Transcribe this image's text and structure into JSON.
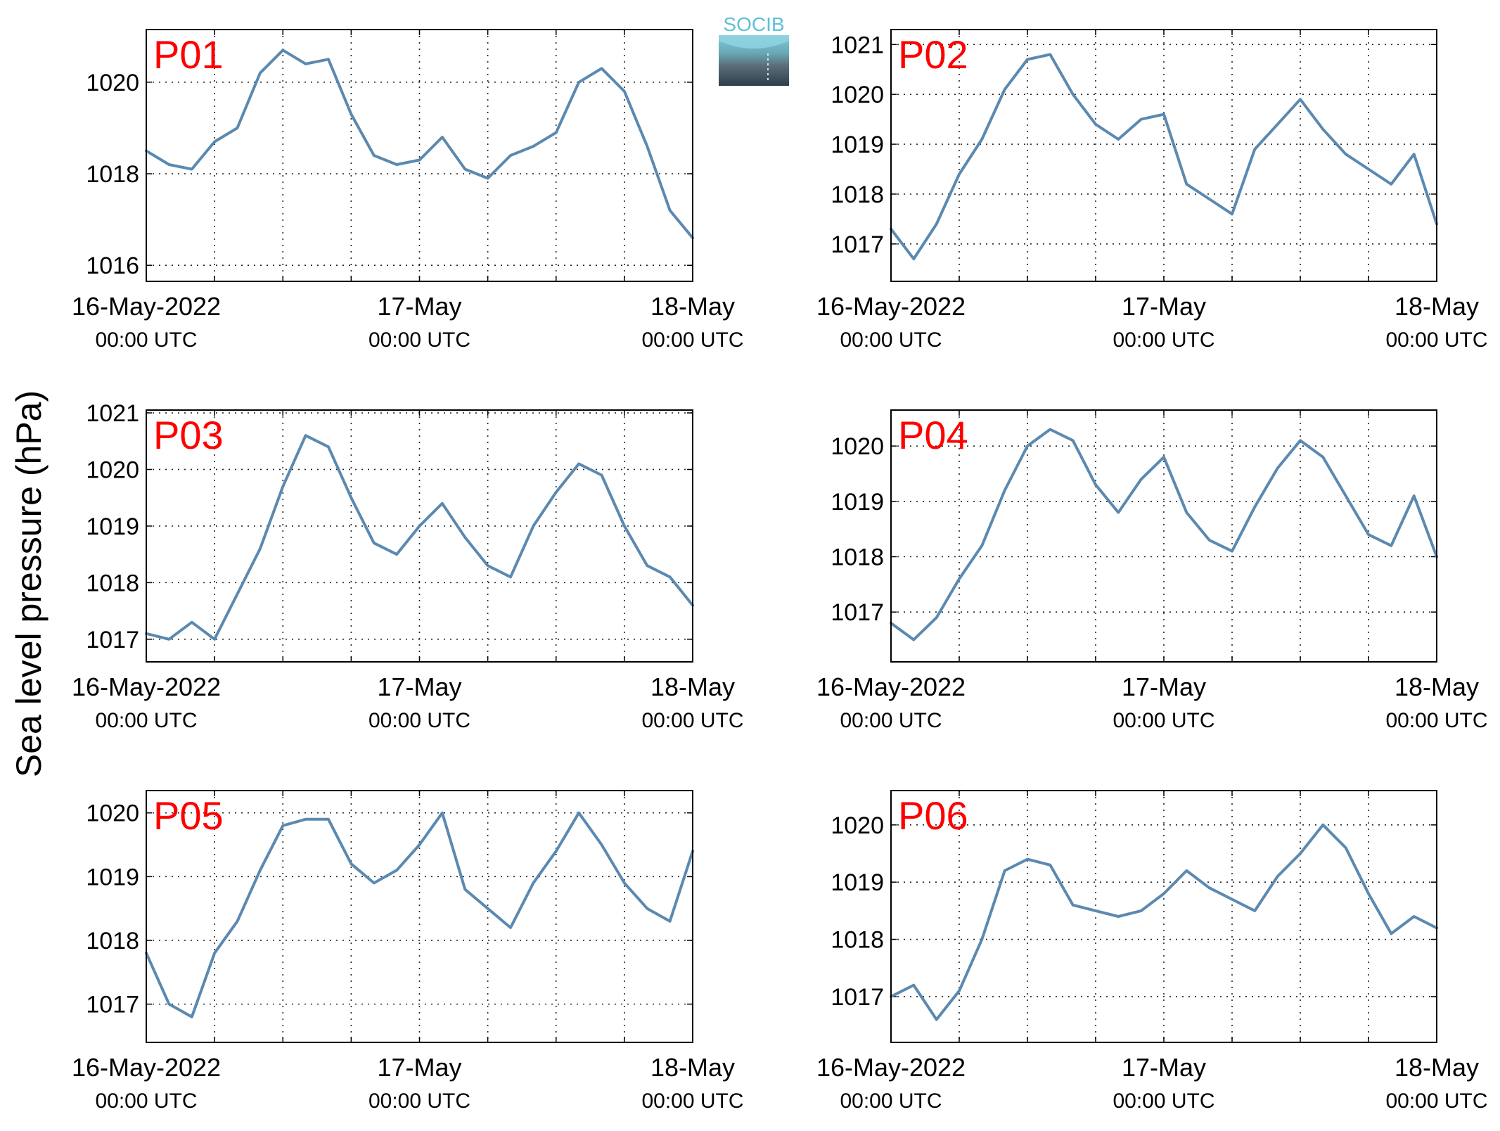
{
  "logo": {
    "text": "SOCIB"
  },
  "figure": {
    "ylabel": "Sea level pressure (hPa)"
  },
  "chart_data": [
    {
      "type": "line",
      "title": "P01",
      "x_ticks": [
        {
          "date": "2022-05-16T00:00",
          "label_line1": "16-May-2022",
          "label_line2": "00:00 UTC"
        },
        {
          "date": "2022-05-17T00:00",
          "label_line1": "17-May",
          "label_line2": "00:00 UTC"
        },
        {
          "date": "2022-05-18T00:00",
          "label_line1": "18-May",
          "label_line2": "00:00 UTC"
        }
      ],
      "xlim": [
        "2022-05-16T00:00",
        "2022-05-18T00:00"
      ],
      "ylim": [
        1015.65,
        1021.15
      ],
      "y_ticks": [
        1016,
        1018,
        1020
      ],
      "grid": true,
      "series": [
        {
          "color": "#5b89b0",
          "x": [
            "2022-05-16T00:00",
            "2022-05-16T02:00",
            "2022-05-16T04:00",
            "2022-05-16T06:00",
            "2022-05-16T08:00",
            "2022-05-16T10:00",
            "2022-05-16T12:00",
            "2022-05-16T14:00",
            "2022-05-16T16:00",
            "2022-05-16T18:00",
            "2022-05-16T20:00",
            "2022-05-16T22:00",
            "2022-05-17T00:00",
            "2022-05-17T02:00",
            "2022-05-17T04:00",
            "2022-05-17T06:00",
            "2022-05-17T08:00",
            "2022-05-17T10:00",
            "2022-05-17T12:00",
            "2022-05-17T14:00",
            "2022-05-17T16:00",
            "2022-05-17T18:00",
            "2022-05-17T20:00",
            "2022-05-17T22:00",
            "2022-05-18T00:00"
          ],
          "y": [
            1018.5,
            1018.2,
            1018.1,
            1018.7,
            1019.0,
            1020.2,
            1020.7,
            1020.4,
            1020.5,
            1019.3,
            1018.4,
            1018.2,
            1018.3,
            1018.8,
            1018.1,
            1017.9,
            1018.4,
            1018.6,
            1018.9,
            1020.0,
            1020.3,
            1019.8,
            1018.6,
            1017.2,
            1016.6
          ]
        }
      ]
    },
    {
      "type": "line",
      "title": "P02",
      "x_ticks": [
        {
          "date": "2022-05-16T00:00",
          "label_line1": "16-May-2022",
          "label_line2": "00:00 UTC"
        },
        {
          "date": "2022-05-17T00:00",
          "label_line1": "17-May",
          "label_line2": "00:00 UTC"
        },
        {
          "date": "2022-05-18T00:00",
          "label_line1": "18-May",
          "label_line2": "00:00 UTC"
        }
      ],
      "xlim": [
        "2022-05-16T00:00",
        "2022-05-18T00:00"
      ],
      "ylim": [
        1016.25,
        1021.3
      ],
      "y_ticks": [
        1017,
        1018,
        1019,
        1020,
        1021
      ],
      "grid": true,
      "series": [
        {
          "color": "#5b89b0",
          "x": [
            "2022-05-16T00:00",
            "2022-05-16T02:00",
            "2022-05-16T04:00",
            "2022-05-16T06:00",
            "2022-05-16T08:00",
            "2022-05-16T10:00",
            "2022-05-16T12:00",
            "2022-05-16T14:00",
            "2022-05-16T16:00",
            "2022-05-16T18:00",
            "2022-05-16T20:00",
            "2022-05-16T22:00",
            "2022-05-17T00:00",
            "2022-05-17T02:00",
            "2022-05-17T04:00",
            "2022-05-17T06:00",
            "2022-05-17T08:00",
            "2022-05-17T10:00",
            "2022-05-17T12:00",
            "2022-05-17T14:00",
            "2022-05-17T16:00",
            "2022-05-17T18:00",
            "2022-05-17T20:00",
            "2022-05-17T22:00",
            "2022-05-18T00:00"
          ],
          "y": [
            1017.3,
            1016.7,
            1017.4,
            1018.4,
            1019.1,
            1020.1,
            1020.7,
            1020.8,
            1020.0,
            1019.4,
            1019.1,
            1019.5,
            1019.6,
            1018.2,
            1017.9,
            1017.6,
            1018.9,
            1019.4,
            1019.9,
            1019.3,
            1018.8,
            1018.5,
            1018.2,
            1018.8,
            1017.4
          ]
        }
      ]
    },
    {
      "type": "line",
      "title": "P03",
      "x_ticks": [
        {
          "date": "2022-05-16T00:00",
          "label_line1": "16-May-2022",
          "label_line2": "00:00 UTC"
        },
        {
          "date": "2022-05-17T00:00",
          "label_line1": "17-May",
          "label_line2": "00:00 UTC"
        },
        {
          "date": "2022-05-18T00:00",
          "label_line1": "18-May",
          "label_line2": "00:00 UTC"
        }
      ],
      "xlim": [
        "2022-05-16T00:00",
        "2022-05-18T00:00"
      ],
      "ylim": [
        1016.6,
        1021.05
      ],
      "y_ticks": [
        1017,
        1018,
        1019,
        1020,
        1021
      ],
      "grid": true,
      "series": [
        {
          "color": "#5b89b0",
          "x": [
            "2022-05-16T00:00",
            "2022-05-16T02:00",
            "2022-05-16T04:00",
            "2022-05-16T06:00",
            "2022-05-16T08:00",
            "2022-05-16T10:00",
            "2022-05-16T12:00",
            "2022-05-16T14:00",
            "2022-05-16T16:00",
            "2022-05-16T18:00",
            "2022-05-16T20:00",
            "2022-05-16T22:00",
            "2022-05-17T00:00",
            "2022-05-17T02:00",
            "2022-05-17T04:00",
            "2022-05-17T06:00",
            "2022-05-17T08:00",
            "2022-05-17T10:00",
            "2022-05-17T12:00",
            "2022-05-17T14:00",
            "2022-05-17T16:00",
            "2022-05-17T18:00",
            "2022-05-17T20:00",
            "2022-05-17T22:00",
            "2022-05-18T00:00"
          ],
          "y": [
            1017.1,
            1017.0,
            1017.3,
            1017.0,
            1017.8,
            1018.6,
            1019.7,
            1020.6,
            1020.4,
            1019.5,
            1018.7,
            1018.5,
            1019.0,
            1019.4,
            1018.8,
            1018.3,
            1018.1,
            1019.0,
            1019.6,
            1020.1,
            1019.9,
            1019.0,
            1018.3,
            1018.1,
            1017.6
          ]
        }
      ]
    },
    {
      "type": "line",
      "title": "P04",
      "x_ticks": [
        {
          "date": "2022-05-16T00:00",
          "label_line1": "16-May-2022",
          "label_line2": "00:00 UTC"
        },
        {
          "date": "2022-05-17T00:00",
          "label_line1": "17-May",
          "label_line2": "00:00 UTC"
        },
        {
          "date": "2022-05-18T00:00",
          "label_line1": "18-May",
          "label_line2": "00:00 UTC"
        }
      ],
      "xlim": [
        "2022-05-16T00:00",
        "2022-05-18T00:00"
      ],
      "ylim": [
        1016.1,
        1020.65
      ],
      "y_ticks": [
        1017,
        1018,
        1019,
        1020
      ],
      "grid": true,
      "series": [
        {
          "color": "#5b89b0",
          "x": [
            "2022-05-16T00:00",
            "2022-05-16T02:00",
            "2022-05-16T04:00",
            "2022-05-16T06:00",
            "2022-05-16T08:00",
            "2022-05-16T10:00",
            "2022-05-16T12:00",
            "2022-05-16T14:00",
            "2022-05-16T16:00",
            "2022-05-16T18:00",
            "2022-05-16T20:00",
            "2022-05-16T22:00",
            "2022-05-17T00:00",
            "2022-05-17T02:00",
            "2022-05-17T04:00",
            "2022-05-17T06:00",
            "2022-05-17T08:00",
            "2022-05-17T10:00",
            "2022-05-17T12:00",
            "2022-05-17T14:00",
            "2022-05-17T16:00",
            "2022-05-17T18:00",
            "2022-05-17T20:00",
            "2022-05-17T22:00",
            "2022-05-18T00:00"
          ],
          "y": [
            1016.8,
            1016.5,
            1016.9,
            1017.6,
            1018.2,
            1019.2,
            1020.0,
            1020.3,
            1020.1,
            1019.3,
            1018.8,
            1019.4,
            1019.8,
            1018.8,
            1018.3,
            1018.1,
            1018.9,
            1019.6,
            1020.1,
            1019.8,
            1019.1,
            1018.4,
            1018.2,
            1019.1,
            1018.0
          ]
        }
      ]
    },
    {
      "type": "line",
      "title": "P05",
      "x_ticks": [
        {
          "date": "2022-05-16T00:00",
          "label_line1": "16-May-2022",
          "label_line2": "00:00 UTC"
        },
        {
          "date": "2022-05-17T00:00",
          "label_line1": "17-May",
          "label_line2": "00:00 UTC"
        },
        {
          "date": "2022-05-18T00:00",
          "label_line1": "18-May",
          "label_line2": "00:00 UTC"
        }
      ],
      "xlim": [
        "2022-05-16T00:00",
        "2022-05-18T00:00"
      ],
      "ylim": [
        1016.4,
        1020.35
      ],
      "y_ticks": [
        1017,
        1018,
        1019,
        1020
      ],
      "grid": true,
      "series": [
        {
          "color": "#5b89b0",
          "x": [
            "2022-05-16T00:00",
            "2022-05-16T02:00",
            "2022-05-16T04:00",
            "2022-05-16T06:00",
            "2022-05-16T08:00",
            "2022-05-16T10:00",
            "2022-05-16T12:00",
            "2022-05-16T14:00",
            "2022-05-16T16:00",
            "2022-05-16T18:00",
            "2022-05-16T20:00",
            "2022-05-16T22:00",
            "2022-05-17T00:00",
            "2022-05-17T02:00",
            "2022-05-17T04:00",
            "2022-05-17T06:00",
            "2022-05-17T08:00",
            "2022-05-17T10:00",
            "2022-05-17T12:00",
            "2022-05-17T14:00",
            "2022-05-17T16:00",
            "2022-05-17T18:00",
            "2022-05-17T20:00",
            "2022-05-17T22:00",
            "2022-05-18T00:00"
          ],
          "y": [
            1017.8,
            1017.0,
            1016.8,
            1017.8,
            1018.3,
            1019.1,
            1019.8,
            1019.9,
            1019.9,
            1019.2,
            1018.9,
            1019.1,
            1019.5,
            1020.0,
            1018.8,
            1018.5,
            1018.2,
            1018.9,
            1019.4,
            1020.0,
            1019.5,
            1018.9,
            1018.5,
            1018.3,
            1019.4
          ]
        }
      ]
    },
    {
      "type": "line",
      "title": "P06",
      "x_ticks": [
        {
          "date": "2022-05-16T00:00",
          "label_line1": "16-May-2022",
          "label_line2": "00:00 UTC"
        },
        {
          "date": "2022-05-17T00:00",
          "label_line1": "17-May",
          "label_line2": "00:00 UTC"
        },
        {
          "date": "2022-05-18T00:00",
          "label_line1": "18-May",
          "label_line2": "00:00 UTC"
        }
      ],
      "xlim": [
        "2022-05-16T00:00",
        "2022-05-18T00:00"
      ],
      "ylim": [
        1016.2,
        1020.6
      ],
      "y_ticks": [
        1017,
        1018,
        1019,
        1020
      ],
      "grid": true,
      "series": [
        {
          "color": "#5b89b0",
          "x": [
            "2022-05-16T00:00",
            "2022-05-16T02:00",
            "2022-05-16T04:00",
            "2022-05-16T06:00",
            "2022-05-16T08:00",
            "2022-05-16T10:00",
            "2022-05-16T12:00",
            "2022-05-16T14:00",
            "2022-05-16T16:00",
            "2022-05-16T18:00",
            "2022-05-16T20:00",
            "2022-05-16T22:00",
            "2022-05-17T00:00",
            "2022-05-17T02:00",
            "2022-05-17T04:00",
            "2022-05-17T06:00",
            "2022-05-17T08:00",
            "2022-05-17T10:00",
            "2022-05-17T12:00",
            "2022-05-17T14:00",
            "2022-05-17T16:00",
            "2022-05-17T18:00",
            "2022-05-17T20:00",
            "2022-05-17T22:00",
            "2022-05-18T00:00"
          ],
          "y": [
            1017.0,
            1017.2,
            1016.6,
            1017.1,
            1018.0,
            1019.2,
            1019.4,
            1019.3,
            1018.6,
            1018.5,
            1018.4,
            1018.5,
            1018.8,
            1019.2,
            1018.9,
            1018.7,
            1018.5,
            1019.1,
            1019.5,
            1020.0,
            1019.6,
            1018.8,
            1018.1,
            1018.4,
            1018.2
          ]
        }
      ]
    }
  ]
}
